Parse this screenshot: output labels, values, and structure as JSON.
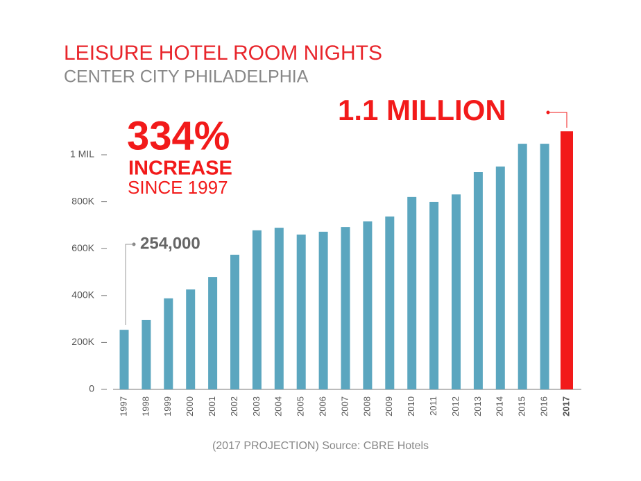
{
  "chart_data": {
    "type": "bar",
    "title": "LEISURE HOTEL ROOM NIGHTS",
    "subtitle": "CENTER CITY PHILADELPHIA",
    "annotations": [
      "334%",
      "INCREASE",
      "SINCE 1997",
      "254,000",
      "1.1 MILLION"
    ],
    "footnote": "(2017 PROJECTION) Source: CBRE Hotels",
    "categories": [
      "1997",
      "1998",
      "1999",
      "2000",
      "2001",
      "2002",
      "2003",
      "2004",
      "2005",
      "2006",
      "2007",
      "2008",
      "2009",
      "2010",
      "2011",
      "2012",
      "2013",
      "2014",
      "2015",
      "2016",
      "2017"
    ],
    "values": [
      254000,
      296000,
      388000,
      426000,
      479000,
      574000,
      678000,
      689000,
      660000,
      672000,
      692000,
      716000,
      737000,
      820000,
      799000,
      831000,
      926000,
      950000,
      1047000,
      1047000,
      1100000
    ],
    "colors": [
      "#5ba6bf",
      "#5ba6bf",
      "#5ba6bf",
      "#5ba6bf",
      "#5ba6bf",
      "#5ba6bf",
      "#5ba6bf",
      "#5ba6bf",
      "#5ba6bf",
      "#5ba6bf",
      "#5ba6bf",
      "#5ba6bf",
      "#5ba6bf",
      "#5ba6bf",
      "#5ba6bf",
      "#5ba6bf",
      "#5ba6bf",
      "#5ba6bf",
      "#5ba6bf",
      "#5ba6bf",
      "#f21a1a"
    ],
    "ylim": [
      0,
      1100000
    ],
    "yticks": [
      0,
      {
        "value": 200000,
        "label": "200K"
      },
      {
        "value": 400000,
        "label": "400K"
      },
      {
        "value": 600000,
        "label": "600K"
      },
      {
        "value": 800000,
        "label": "800K"
      },
      {
        "value": 1000000,
        "label": "1 MIL"
      }
    ],
    "grid": false
  }
}
